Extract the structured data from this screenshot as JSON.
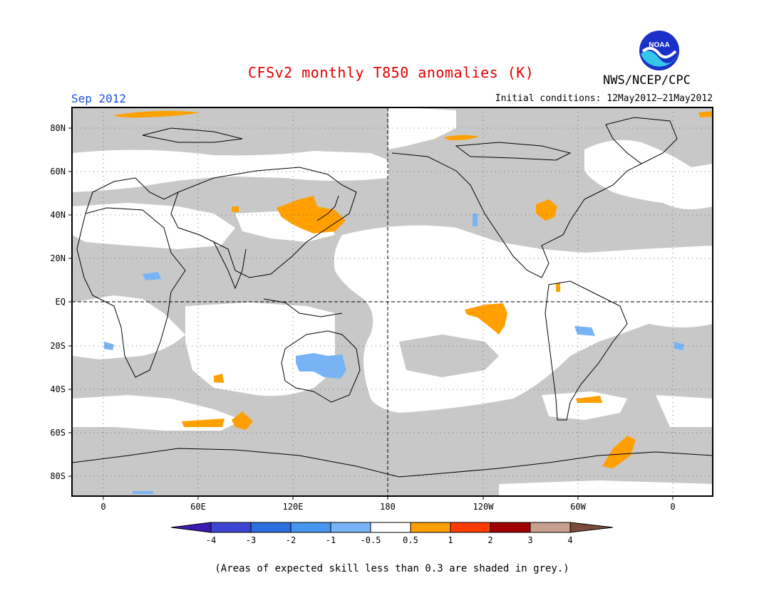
{
  "header": {
    "title": "CFSv2 monthly T850 anomalies (K)",
    "month": "Sep 2012",
    "initial_conditions": "Initial conditions: 12May2012–21May2012",
    "agency": "NWS/NCEP/CPC",
    "logo_text": "NOAA"
  },
  "map": {
    "lat_labels": [
      "80N",
      "60N",
      "40N",
      "20N",
      "EQ",
      "20S",
      "40S",
      "60S",
      "80S"
    ],
    "lon_labels": [
      "0",
      "60E",
      "120E",
      "180",
      "120W",
      "60W",
      "0"
    ],
    "colors": {
      "low_skill_grey": "#c8c8c8",
      "anom_pos_0_5_1": "#ffa000",
      "anom_neg_0_5_1": "#78b4f5",
      "neutral": "#ffffff"
    }
  },
  "colorbar": {
    "ticks": [
      "-4",
      "-3",
      "-2",
      "-1",
      "-0.5",
      "0.5",
      "1",
      "2",
      "3",
      "4"
    ],
    "colors": [
      "#3c1ab4",
      "#3c46d2",
      "#2d6ee1",
      "#4696f0",
      "#78b4f5",
      "#ffffff",
      "#ffa000",
      "#ff3c00",
      "#a00000",
      "#c8a090",
      "#7a4a3a"
    ]
  },
  "footnote": "(Areas of expected skill less than 0.3 are shaded in grey.)"
}
